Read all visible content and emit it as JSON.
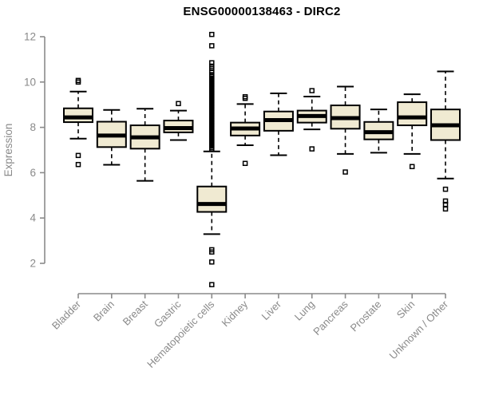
{
  "title": "ENSG00000138463 - DIRC2",
  "chart_data": {
    "type": "boxplot",
    "title": "ENSG00000138463 - DIRC2",
    "xlabel": "",
    "ylabel": "Expression",
    "ylim": [
      2,
      12
    ],
    "yticks": [
      2,
      4,
      6,
      8,
      10,
      12
    ],
    "grid": "off",
    "legend": "none",
    "categories": [
      "Bladder",
      "Brain",
      "Breast",
      "Gastric",
      "Hematopoietic cells",
      "Kidney",
      "Liver",
      "Lung",
      "Pancreas",
      "Prostate",
      "Skin",
      "Unknown / Other"
    ],
    "series": [
      {
        "name": "Bladder",
        "whisker_low": 7.5,
        "q1": 8.23,
        "median": 8.44,
        "q3": 8.84,
        "whisker_high": 9.58,
        "outliers_high": [
          10.0,
          10.07
        ],
        "outliers_low": [
          6.76,
          6.36
        ]
      },
      {
        "name": "Brain",
        "whisker_low": 6.35,
        "q1": 7.13,
        "median": 7.64,
        "q3": 8.25,
        "whisker_high": 8.77,
        "outliers_high": [],
        "outliers_low": []
      },
      {
        "name": "Breast",
        "whisker_low": 5.64,
        "q1": 7.06,
        "median": 7.56,
        "q3": 8.09,
        "whisker_high": 8.82,
        "outliers_high": [],
        "outliers_low": []
      },
      {
        "name": "Gastric",
        "whisker_low": 7.44,
        "q1": 7.78,
        "median": 7.97,
        "q3": 8.3,
        "whisker_high": 8.74,
        "outliers_high": [
          9.05
        ],
        "outliers_low": []
      },
      {
        "name": "Hematopoietic cells",
        "whisker_low": 3.29,
        "q1": 4.27,
        "median": 4.62,
        "q3": 5.39,
        "whisker_high": 6.94,
        "outliers_high": [
          12.1,
          11.6,
          10.85,
          10.7,
          10.6,
          10.45,
          10.33,
          10.25,
          10.18,
          10.11,
          10.04,
          9.97,
          9.9,
          9.83,
          9.76,
          9.69,
          9.62,
          9.55,
          9.48,
          9.41,
          9.34,
          9.27,
          9.2,
          9.13,
          9.06,
          8.99,
          8.92,
          8.85,
          8.78,
          8.71,
          8.64,
          8.57,
          8.5,
          8.43,
          8.36,
          8.29,
          8.22,
          8.15,
          8.08,
          8.01,
          7.94,
          7.87,
          7.8,
          7.73,
          7.66,
          7.59,
          7.52,
          7.45,
          7.38,
          7.31,
          7.24,
          7.17,
          7.1,
          7.03
        ],
        "outliers_low": [
          2.6,
          2.5,
          2.06,
          1.06
        ]
      },
      {
        "name": "Kidney",
        "whisker_low": 7.21,
        "q1": 7.64,
        "median": 7.95,
        "q3": 8.21,
        "whisker_high": 9.03,
        "outliers_high": [
          9.28,
          9.35
        ],
        "outliers_low": [
          6.41
        ]
      },
      {
        "name": "Liver",
        "whisker_low": 6.77,
        "q1": 7.85,
        "median": 8.32,
        "q3": 8.7,
        "whisker_high": 9.5,
        "outliers_high": [],
        "outliers_low": []
      },
      {
        "name": "Lung",
        "whisker_low": 7.91,
        "q1": 8.21,
        "median": 8.5,
        "q3": 8.74,
        "whisker_high": 9.36,
        "outliers_high": [
          9.62
        ],
        "outliers_low": [
          7.05
        ]
      },
      {
        "name": "Pancreas",
        "whisker_low": 6.83,
        "q1": 7.94,
        "median": 8.41,
        "q3": 8.97,
        "whisker_high": 9.8,
        "outliers_high": [],
        "outliers_low": [
          6.03
        ]
      },
      {
        "name": "Prostate",
        "whisker_low": 6.88,
        "q1": 7.47,
        "median": 7.79,
        "q3": 8.24,
        "whisker_high": 8.79,
        "outliers_high": [],
        "outliers_low": []
      },
      {
        "name": "Skin",
        "whisker_low": 6.83,
        "q1": 8.09,
        "median": 8.44,
        "q3": 9.11,
        "whisker_high": 9.46,
        "outliers_high": [],
        "outliers_low": [
          6.27
        ]
      },
      {
        "name": "Unknown / Other",
        "whisker_low": 5.74,
        "q1": 7.44,
        "median": 8.09,
        "q3": 8.79,
        "whisker_high": 10.47,
        "outliers_high": [],
        "outliers_low": [
          5.27,
          4.75,
          4.6,
          4.4
        ]
      }
    ],
    "colors": {
      "box_fill": "#F0EAD2",
      "box_stroke": "#000000",
      "median": "#000000",
      "whisker": "#000000",
      "outlier": "#000000",
      "axis": "#8A8A8A",
      "tick_label": "#8A8A8A",
      "axis_title": "#8A8A8A",
      "chart_title": "#000000",
      "background": "#FFFFFF"
    }
  }
}
